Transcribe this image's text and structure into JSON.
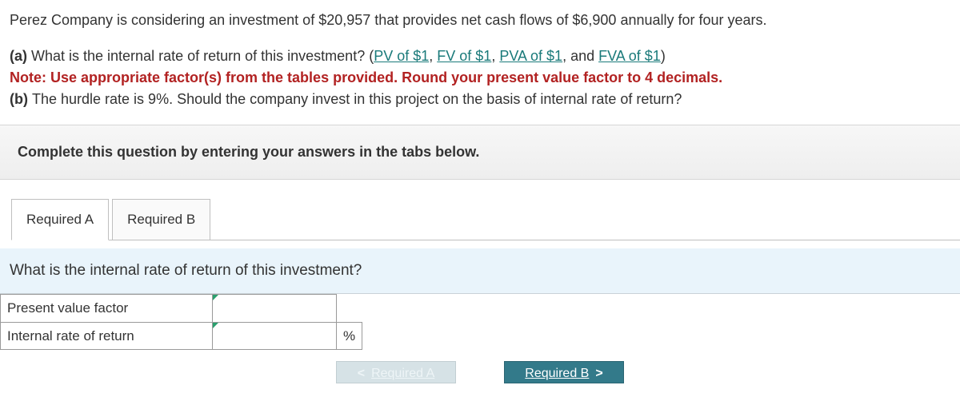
{
  "question": {
    "intro": "Perez Company is considering an investment of $20,957 that provides net cash flows of $6,900 annually for four years.",
    "part_a_prefix": "(a) ",
    "part_a_text": "What is the internal rate of return of this investment? (",
    "links": {
      "pv": "PV of $1",
      "fv": "FV of $1",
      "pva": "PVA of $1",
      "fva": "FVA of $1"
    },
    "sep1": ", ",
    "sep2": ", ",
    "sep3": ", and ",
    "close_paren": ")",
    "note_prefix": "Note: ",
    "note_text": "Use appropriate factor(s) from the tables provided. Round your present value factor to 4 decimals.",
    "part_b_prefix": "(b) ",
    "part_b_text": "The hurdle rate is 9%. Should the company invest in this project on the basis of internal rate of return?"
  },
  "instruction": "Complete this question by entering your answers in the tabs below.",
  "tabs": {
    "a": "Required A",
    "b": "Required B"
  },
  "tab_prompt": "What is the internal rate of return of this investment?",
  "rows": {
    "pvf_label": "Present value factor",
    "irr_label": "Internal rate of return",
    "percent": "%"
  },
  "nav": {
    "prev": "Required A",
    "next": "Required B",
    "chev_left": "<",
    "chev_right": ">"
  }
}
